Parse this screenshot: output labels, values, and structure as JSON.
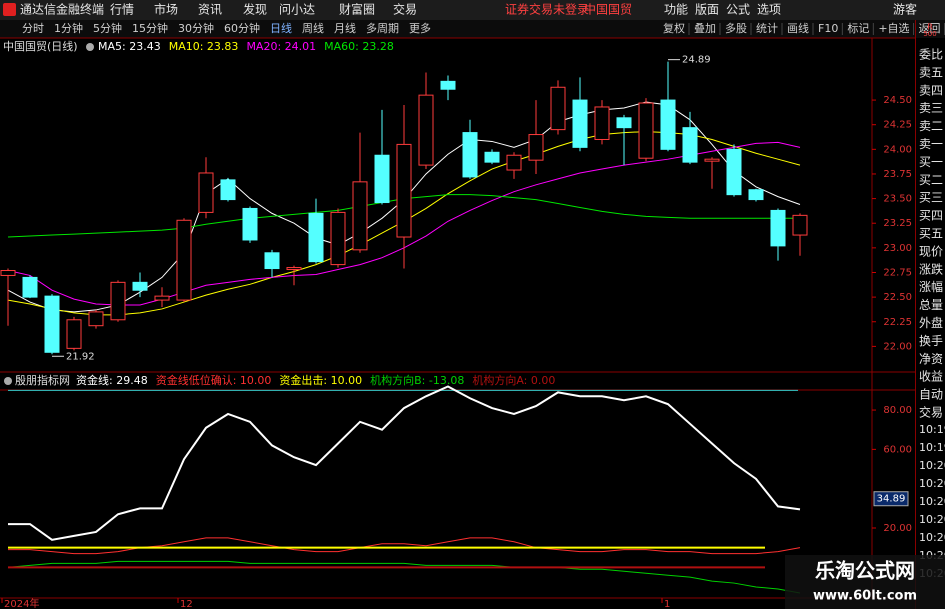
{
  "menu": {
    "logo": "通达信金融终端",
    "items": [
      "行情",
      "市场",
      "资讯",
      "发现",
      "问小达",
      "财富圈",
      "交易"
    ],
    "notice": "证券交易未登录",
    "stock": "中国国贸",
    "right": [
      "功能",
      "版面",
      "公式",
      "选项"
    ],
    "guest": "游客"
  },
  "toolbar": {
    "periods": [
      "分时",
      "1分钟",
      "5分钟",
      "15分钟",
      "30分钟",
      "60分钟",
      "日线",
      "周线",
      "月线",
      "多周期",
      "更多"
    ],
    "active": 6,
    "right": [
      "复权",
      "叠加",
      "多股",
      "统计",
      "画线",
      "F10",
      "标记",
      "+自选",
      "返回"
    ]
  },
  "side": {
    "badge": [
      "R",
      "500"
    ],
    "labels": [
      "委比",
      "卖五",
      "卖四",
      "卖三",
      "卖二",
      "卖一",
      "买一",
      "买二",
      "买三",
      "买四",
      "买五",
      "现价",
      "涨跌",
      "涨幅",
      "总量",
      "外盘",
      "换手",
      "净资",
      "收益",
      "自动",
      "交易"
    ],
    "times": [
      "10:19",
      "10:19",
      "10:20",
      "10:20",
      "10:20",
      "10:20",
      "10:20",
      "10:20",
      "10:20"
    ]
  },
  "watermark": {
    "title": "乐淘公式网",
    "url": "www.60lt.com"
  },
  "chart_data": [
    {
      "type": "candlestick",
      "title": "中国国贸(日线)",
      "up_color": "#ff3c3c",
      "down_color": "#54ffff",
      "categories": [
        "2024年",
        null,
        null,
        null,
        null,
        null,
        null,
        null,
        "12",
        null,
        null,
        null,
        null,
        null,
        null,
        null,
        null,
        null,
        null,
        null,
        null,
        null,
        null,
        null,
        null,
        null,
        null,
        null,
        null,
        null,
        "1",
        null,
        null,
        null,
        null,
        null,
        null
      ],
      "candles": [
        {
          "open": 22.72,
          "high": 22.79,
          "low": 22.21,
          "close": 22.77
        },
        {
          "open": 22.7,
          "high": 22.72,
          "low": 22.49,
          "close": 22.5
        },
        {
          "open": 22.51,
          "high": 22.53,
          "low": 21.92,
          "close": 21.94
        },
        {
          "open": 21.98,
          "high": 22.3,
          "low": 21.96,
          "close": 22.27
        },
        {
          "open": 22.21,
          "high": 22.37,
          "low": 22.18,
          "close": 22.35
        },
        {
          "open": 22.27,
          "high": 22.67,
          "low": 22.25,
          "close": 22.65
        },
        {
          "open": 22.65,
          "high": 22.75,
          "low": 22.5,
          "close": 22.57
        },
        {
          "open": 22.47,
          "high": 22.6,
          "low": 22.4,
          "close": 22.51
        },
        {
          "open": 22.47,
          "high": 23.3,
          "low": 22.45,
          "close": 23.28
        },
        {
          "open": 23.36,
          "high": 23.92,
          "low": 23.3,
          "close": 23.76
        },
        {
          "open": 23.69,
          "high": 23.71,
          "low": 23.47,
          "close": 23.49
        },
        {
          "open": 23.4,
          "high": 23.42,
          "low": 23.05,
          "close": 23.08
        },
        {
          "open": 22.95,
          "high": 22.98,
          "low": 22.7,
          "close": 22.79
        },
        {
          "open": 22.78,
          "high": 22.82,
          "low": 22.62,
          "close": 22.8
        },
        {
          "open": 23.35,
          "high": 23.5,
          "low": 22.84,
          "close": 22.86
        },
        {
          "open": 22.83,
          "high": 23.4,
          "low": 22.8,
          "close": 23.36
        },
        {
          "open": 22.98,
          "high": 24.17,
          "low": 22.95,
          "close": 23.67
        },
        {
          "open": 23.94,
          "high": 24.4,
          "low": 23.44,
          "close": 23.46
        },
        {
          "open": 23.11,
          "high": 24.45,
          "low": 22.79,
          "close": 24.05
        },
        {
          "open": 23.84,
          "high": 24.78,
          "low": 23.8,
          "close": 24.55
        },
        {
          "open": 24.69,
          "high": 24.75,
          "low": 24.5,
          "close": 24.61
        },
        {
          "open": 24.17,
          "high": 24.3,
          "low": 23.7,
          "close": 23.72
        },
        {
          "open": 23.97,
          "high": 24.0,
          "low": 23.85,
          "close": 23.87
        },
        {
          "open": 23.79,
          "high": 23.97,
          "low": 23.7,
          "close": 23.94
        },
        {
          "open": 23.89,
          "high": 24.5,
          "low": 23.75,
          "close": 24.15
        },
        {
          "open": 24.2,
          "high": 24.7,
          "low": 24.15,
          "close": 24.63
        },
        {
          "open": 24.5,
          "high": 24.73,
          "low": 23.98,
          "close": 24.02
        },
        {
          "open": 24.1,
          "high": 24.5,
          "low": 24.05,
          "close": 24.43
        },
        {
          "open": 24.32,
          "high": 24.35,
          "low": 23.84,
          "close": 24.22
        },
        {
          "open": 23.91,
          "high": 24.52,
          "low": 23.88,
          "close": 24.47
        },
        {
          "open": 24.5,
          "high": 24.89,
          "low": 23.98,
          "close": 24.0
        },
        {
          "open": 24.22,
          "high": 24.38,
          "low": 23.85,
          "close": 23.87
        },
        {
          "open": 23.88,
          "high": 23.92,
          "low": 23.6,
          "close": 23.9
        },
        {
          "open": 24.0,
          "high": 24.05,
          "low": 23.52,
          "close": 23.54
        },
        {
          "open": 23.59,
          "high": 23.6,
          "low": 23.47,
          "close": 23.49
        },
        {
          "open": 23.38,
          "high": 23.4,
          "low": 22.87,
          "close": 23.02
        },
        {
          "open": 23.13,
          "high": 23.35,
          "low": 22.92,
          "close": 23.33
        }
      ],
      "series": [
        {
          "name": "MA5: 23.43",
          "color": "#ffffff",
          "values": [
            22.57,
            22.45,
            22.37,
            22.35,
            22.37,
            22.42,
            22.55,
            22.7,
            22.95,
            23.55,
            23.7,
            23.5,
            23.35,
            23.25,
            23.1,
            23.03,
            23.15,
            23.3,
            23.49,
            23.75,
            23.95,
            24.1,
            24.08,
            24.02,
            24.1,
            24.28,
            24.35,
            24.4,
            24.42,
            24.48,
            24.45,
            24.3,
            24.05,
            23.78,
            23.62,
            23.52,
            23.44
          ]
        },
        {
          "name": "MA10: 23.83",
          "color": "#ffff00",
          "values": [
            22.47,
            22.43,
            22.38,
            22.34,
            22.32,
            22.32,
            22.34,
            22.38,
            22.45,
            22.52,
            22.58,
            22.63,
            22.7,
            22.76,
            22.83,
            22.92,
            23.03,
            23.15,
            23.27,
            23.4,
            23.55,
            23.68,
            23.8,
            23.88,
            23.95,
            24.03,
            24.1,
            24.15,
            24.17,
            24.18,
            24.17,
            24.15,
            24.1,
            24.03,
            23.96,
            23.9,
            23.84
          ]
        },
        {
          "name": "MA20: 24.01",
          "color": "#ff00ff",
          "values": [
            22.77,
            22.72,
            22.57,
            22.48,
            22.43,
            22.42,
            22.42,
            22.48,
            22.55,
            22.62,
            22.65,
            22.68,
            22.7,
            22.72,
            22.73,
            22.78,
            22.83,
            22.9,
            23.0,
            23.12,
            23.27,
            23.38,
            23.48,
            23.57,
            23.64,
            23.7,
            23.76,
            23.8,
            23.84,
            23.87,
            23.9,
            23.94,
            23.98,
            24.02,
            24.06,
            24.07,
            24.02
          ]
        },
        {
          "name": "MA60: 23.28",
          "color": "#00e600",
          "values": [
            23.11,
            23.12,
            23.13,
            23.14,
            23.15,
            23.16,
            23.17,
            23.18,
            23.2,
            23.24,
            23.27,
            23.3,
            23.32,
            23.34,
            23.36,
            23.38,
            23.42,
            23.46,
            23.5,
            23.52,
            23.54,
            23.54,
            23.53,
            23.51,
            23.49,
            23.45,
            23.41,
            23.37,
            23.34,
            23.32,
            23.31,
            23.3,
            23.3,
            23.3,
            23.3,
            23.3,
            23.3
          ]
        }
      ],
      "annotations": [
        24.89,
        21.92
      ],
      "ylim": [
        21.74,
        25.13
      ],
      "yticks": [
        {
          "value": 24.5,
          "label": "24.50"
        },
        {
          "value": 24.25,
          "label": "24.25"
        },
        {
          "value": 24,
          "label": "24.00"
        },
        {
          "value": 23.75,
          "label": "23.75"
        },
        {
          "value": 23.5,
          "label": "23.50"
        },
        {
          "value": 23.25,
          "label": "23.25"
        },
        {
          "value": 23,
          "label": "23.00"
        },
        {
          "value": 22.75,
          "label": "22.75"
        },
        {
          "value": 22.5,
          "label": "22.50"
        },
        {
          "value": 22.25,
          "label": "22.25"
        },
        {
          "value": 22,
          "label": "22.00"
        }
      ]
    },
    {
      "type": "line",
      "title": "殷朋指标网",
      "series": [
        {
          "name": "资金线: 29.48",
          "color": "#ffffff",
          "values": [
            22,
            22,
            14,
            16,
            18,
            27,
            30,
            30,
            55,
            71,
            78,
            74,
            62,
            56,
            52,
            63,
            74,
            70,
            81,
            87,
            92,
            86,
            81,
            78,
            82,
            89,
            87,
            87,
            85,
            87,
            83,
            73,
            63,
            53,
            45,
            31,
            29.48
          ]
        },
        {
          "name": "资金线低位确认: 10.00",
          "color": "#ff3030",
          "values": [
            9,
            9,
            8,
            7,
            7,
            8,
            10,
            11,
            13,
            15,
            15,
            13,
            11,
            9,
            8,
            8,
            10,
            12,
            12,
            11,
            13,
            15,
            15,
            13,
            10,
            9,
            8,
            8,
            9,
            9,
            8,
            8,
            7,
            7,
            7,
            8,
            10
          ]
        },
        {
          "name": "资金出击: 10.00",
          "color": "#ffff00",
          "value": 10
        },
        {
          "name": "机构方向B: -13.08",
          "color": "#00d000",
          "values": [
            0,
            1,
            2,
            2,
            2,
            3,
            3,
            3,
            3,
            3,
            3,
            2,
            2,
            2,
            2,
            2,
            2,
            2,
            2,
            1,
            1,
            1,
            1,
            0,
            0,
            0,
            -1,
            -1,
            -2,
            -3,
            -4,
            -5,
            -7,
            -8,
            -10,
            -11,
            -13.08
          ]
        },
        {
          "name": "机构方向A: 0.00",
          "color": "#b01010",
          "value": 0
        }
      ],
      "reference_lines": [
        {
          "value": 90,
          "color": "#39c9c9"
        }
      ],
      "cursor": {
        "value": 34.89,
        "label": "34.89"
      },
      "ylim": [
        -15.6,
        90.2
      ],
      "yticks": [
        {
          "value": 80,
          "label": "80.00"
        },
        {
          "value": 60,
          "label": "60.00"
        },
        {
          "value": 20,
          "label": "20.00"
        }
      ]
    }
  ]
}
